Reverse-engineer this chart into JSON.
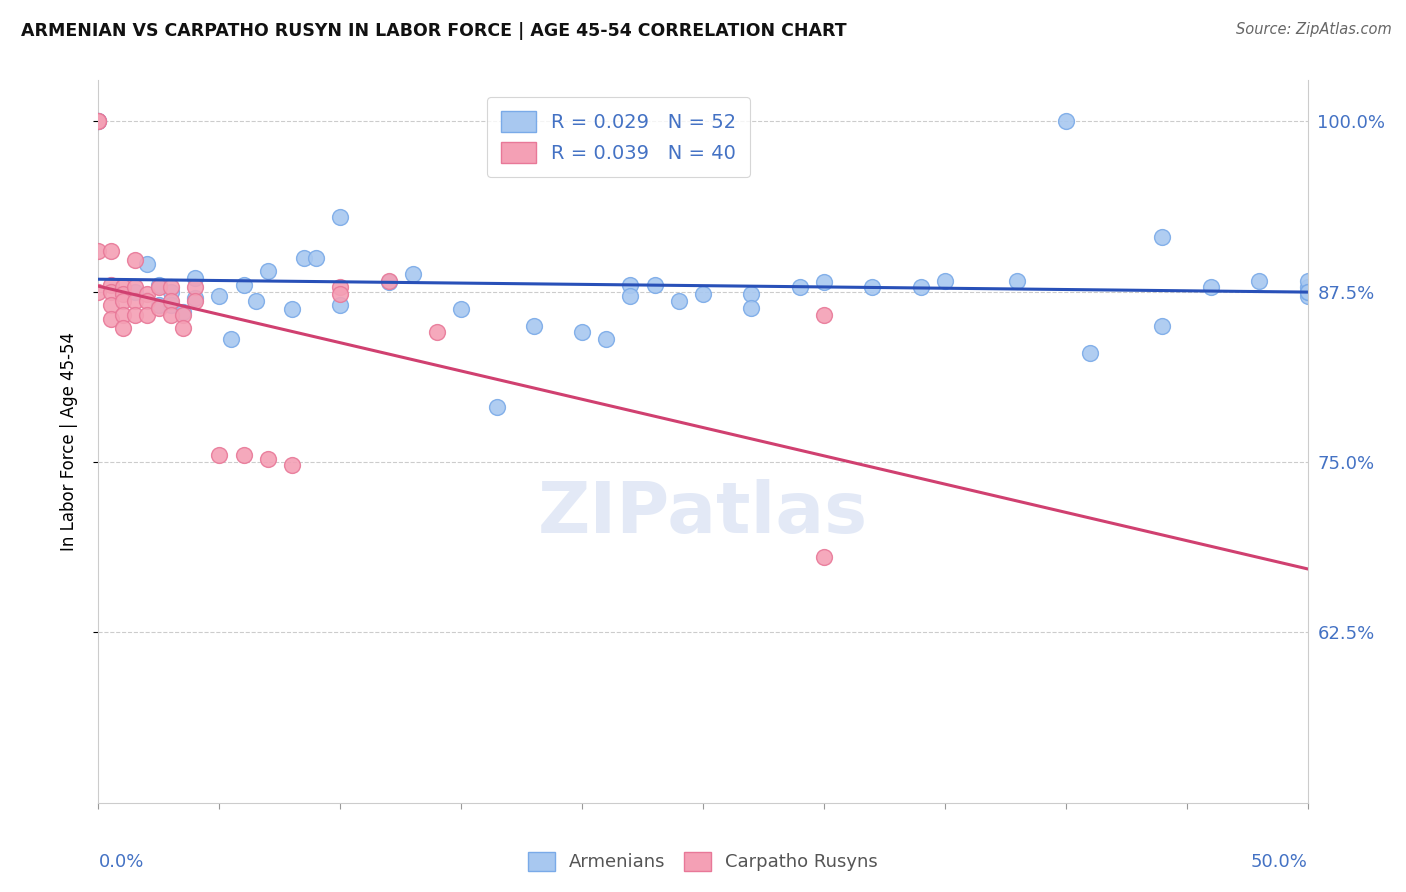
{
  "title": "ARMENIAN VS CARPATHO RUSYN IN LABOR FORCE | AGE 45-54 CORRELATION CHART",
  "source": "Source: ZipAtlas.com",
  "ylabel": "In Labor Force | Age 45-54",
  "ytick_labels": [
    "62.5%",
    "75.0%",
    "87.5%",
    "100.0%"
  ],
  "ytick_values": [
    0.625,
    0.75,
    0.875,
    1.0
  ],
  "xlim": [
    0.0,
    0.5
  ],
  "ylim": [
    0.5,
    1.03
  ],
  "watermark": "ZIPatlas",
  "blue_color": "#a8c8f0",
  "pink_color": "#f4a0b5",
  "blue_edge": "#7aaae8",
  "pink_edge": "#e87898",
  "line_blue": "#2850b8",
  "line_pink": "#d04070",
  "title_color": "#111111",
  "axis_label_color": "#4472c4",
  "blue_x": [
    0.0,
    0.0,
    0.015,
    0.02,
    0.025,
    0.025,
    0.03,
    0.03,
    0.035,
    0.04,
    0.04,
    0.05,
    0.055,
    0.06,
    0.065,
    0.07,
    0.08,
    0.085,
    0.09,
    0.1,
    0.1,
    0.12,
    0.13,
    0.15,
    0.165,
    0.18,
    0.2,
    0.21,
    0.22,
    0.22,
    0.23,
    0.24,
    0.25,
    0.27,
    0.27,
    0.29,
    0.3,
    0.32,
    0.34,
    0.35,
    0.38,
    0.4,
    0.41,
    0.44,
    0.44,
    0.46,
    0.48,
    0.5,
    0.5,
    0.5,
    0.5,
    0.5
  ],
  "blue_y": [
    1.0,
    1.0,
    0.875,
    0.895,
    0.88,
    0.865,
    0.875,
    0.865,
    0.86,
    0.885,
    0.87,
    0.872,
    0.84,
    0.88,
    0.868,
    0.89,
    0.862,
    0.9,
    0.9,
    0.93,
    0.865,
    0.882,
    0.888,
    0.862,
    0.79,
    0.85,
    0.845,
    0.84,
    0.88,
    0.872,
    0.88,
    0.868,
    0.873,
    0.873,
    0.863,
    0.878,
    0.882,
    0.878,
    0.878,
    0.883,
    0.883,
    1.0,
    0.83,
    0.915,
    0.85,
    0.878,
    0.883,
    0.872,
    0.878,
    0.883,
    0.875,
    0.875
  ],
  "pink_x": [
    0.0,
    0.0,
    0.0,
    0.0,
    0.005,
    0.005,
    0.005,
    0.005,
    0.005,
    0.01,
    0.01,
    0.01,
    0.01,
    0.01,
    0.015,
    0.015,
    0.015,
    0.015,
    0.02,
    0.02,
    0.02,
    0.025,
    0.025,
    0.03,
    0.03,
    0.03,
    0.035,
    0.035,
    0.04,
    0.04,
    0.05,
    0.06,
    0.07,
    0.08,
    0.1,
    0.1,
    0.12,
    0.14,
    0.3,
    0.3
  ],
  "pink_y": [
    1.0,
    1.0,
    0.905,
    0.875,
    0.905,
    0.88,
    0.875,
    0.865,
    0.855,
    0.878,
    0.873,
    0.868,
    0.858,
    0.848,
    0.898,
    0.878,
    0.868,
    0.858,
    0.873,
    0.868,
    0.858,
    0.878,
    0.863,
    0.878,
    0.868,
    0.858,
    0.858,
    0.848,
    0.878,
    0.868,
    0.755,
    0.755,
    0.752,
    0.748,
    0.878,
    0.873,
    0.883,
    0.845,
    0.858,
    0.68
  ]
}
